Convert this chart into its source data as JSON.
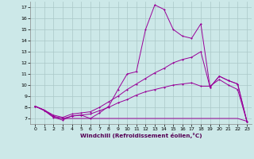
{
  "xlabel": "Windchill (Refroidissement éolien,°C)",
  "bg_color": "#cce8e8",
  "line_color": "#990099",
  "grid_color": "#aac8c8",
  "xlim": [
    -0.5,
    23.5
  ],
  "ylim": [
    6.5,
    17.5
  ],
  "xticks": [
    0,
    1,
    2,
    3,
    4,
    5,
    6,
    7,
    8,
    9,
    10,
    11,
    12,
    13,
    14,
    15,
    16,
    17,
    18,
    19,
    20,
    21,
    22,
    23
  ],
  "yticks": [
    7,
    8,
    9,
    10,
    11,
    12,
    13,
    14,
    15,
    16,
    17
  ],
  "series1_x": [
    0,
    1,
    2,
    3,
    4,
    5,
    6,
    7,
    8,
    9,
    10,
    11,
    12,
    13,
    14,
    15,
    16,
    17,
    18,
    19,
    20,
    21,
    22,
    23
  ],
  "series1_y": [
    8.1,
    7.7,
    7.1,
    6.85,
    7.25,
    7.3,
    7.0,
    7.5,
    8.1,
    9.6,
    11.0,
    11.2,
    15.0,
    17.2,
    16.8,
    15.0,
    14.4,
    14.2,
    15.5,
    9.8,
    10.8,
    10.4,
    10.1,
    6.75
  ],
  "series2_x": [
    0,
    1,
    2,
    3,
    4,
    5,
    6,
    7,
    8,
    9,
    10,
    11,
    12,
    13,
    14,
    15,
    16,
    17,
    18,
    19,
    20,
    21,
    22,
    23
  ],
  "series2_y": [
    8.1,
    7.75,
    7.3,
    7.1,
    7.4,
    7.5,
    7.6,
    8.0,
    8.5,
    9.0,
    9.6,
    10.1,
    10.6,
    11.1,
    11.5,
    12.0,
    12.3,
    12.5,
    13.0,
    9.8,
    10.8,
    10.4,
    10.1,
    6.75
  ],
  "series3_x": [
    0,
    1,
    2,
    3,
    4,
    5,
    6,
    7,
    8,
    9,
    10,
    11,
    12,
    13,
    14,
    15,
    16,
    17,
    18,
    19,
    20,
    21,
    22,
    23
  ],
  "series3_y": [
    8.1,
    7.75,
    7.2,
    7.0,
    7.2,
    7.3,
    7.4,
    7.7,
    8.0,
    8.4,
    8.7,
    9.1,
    9.4,
    9.6,
    9.8,
    10.0,
    10.1,
    10.2,
    9.9,
    9.9,
    10.5,
    10.0,
    9.6,
    6.75
  ],
  "series4_x": [
    0,
    1,
    2,
    3,
    4,
    5,
    6,
    7,
    8,
    9,
    10,
    11,
    12,
    13,
    14,
    15,
    16,
    17,
    18,
    19,
    20,
    21,
    22,
    23
  ],
  "series4_y": [
    8.1,
    7.75,
    7.1,
    7.0,
    7.0,
    7.0,
    7.0,
    7.0,
    7.0,
    7.0,
    7.0,
    7.0,
    7.0,
    7.0,
    7.0,
    7.0,
    7.0,
    7.0,
    7.0,
    7.0,
    7.0,
    7.0,
    7.0,
    6.75
  ]
}
